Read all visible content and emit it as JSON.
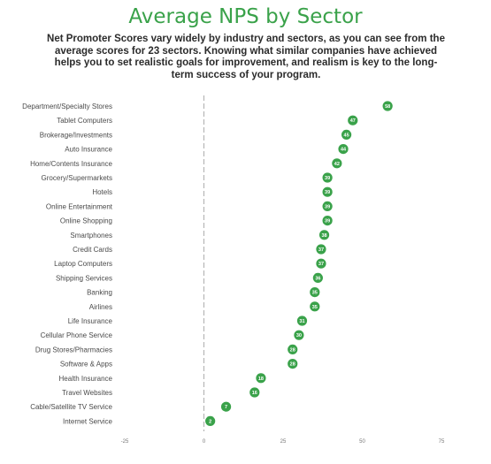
{
  "chart_data": {
    "type": "scatter",
    "title": "Average NPS by Sector",
    "subtitle": "Net Promoter Scores vary widely by industry and sectors, as you can see from the average scores for 23 sectors. Knowing what similar companies have achieved helps you to set realistic goals for improvement, and realism is key to the long-term success of your program.",
    "categories": [
      "Department/Specialty Stores",
      "Tablet Computers",
      "Brokerage/Investments",
      "Auto Insurance",
      "Home/Contents Insurance",
      "Grocery/Supermarkets",
      "Hotels",
      "Online Entertainment",
      "Online Shopping",
      "Smartphones",
      "Credit Cards",
      "Laptop Computers",
      "Shipping Services",
      "Banking",
      "Airlines",
      "Life Insurance",
      "Cellular Phone Service",
      "Drug Stores/Pharmacies",
      "Software & Apps",
      "Health Insurance",
      "Travel Websites",
      "Cable/Satellite TV Service",
      "Internet Service"
    ],
    "values": [
      58,
      47,
      45,
      44,
      42,
      39,
      39,
      39,
      39,
      38,
      37,
      37,
      36,
      35,
      35,
      31,
      30,
      28,
      28,
      18,
      16,
      7,
      2
    ],
    "value_labels": [
      "58",
      "47",
      "45",
      "44",
      "42",
      "39",
      "39",
      "39",
      "39",
      "38",
      "37",
      "37",
      "36",
      "35",
      "35",
      "31",
      "30",
      "28",
      "28",
      "18",
      "16",
      "7",
      "2"
    ],
    "xticks": [
      -25,
      0,
      25,
      50,
      75
    ],
    "xlim": [
      -25,
      75
    ],
    "marker_color": "#3aa24a",
    "zero_line": "dashed",
    "grid": false
  }
}
